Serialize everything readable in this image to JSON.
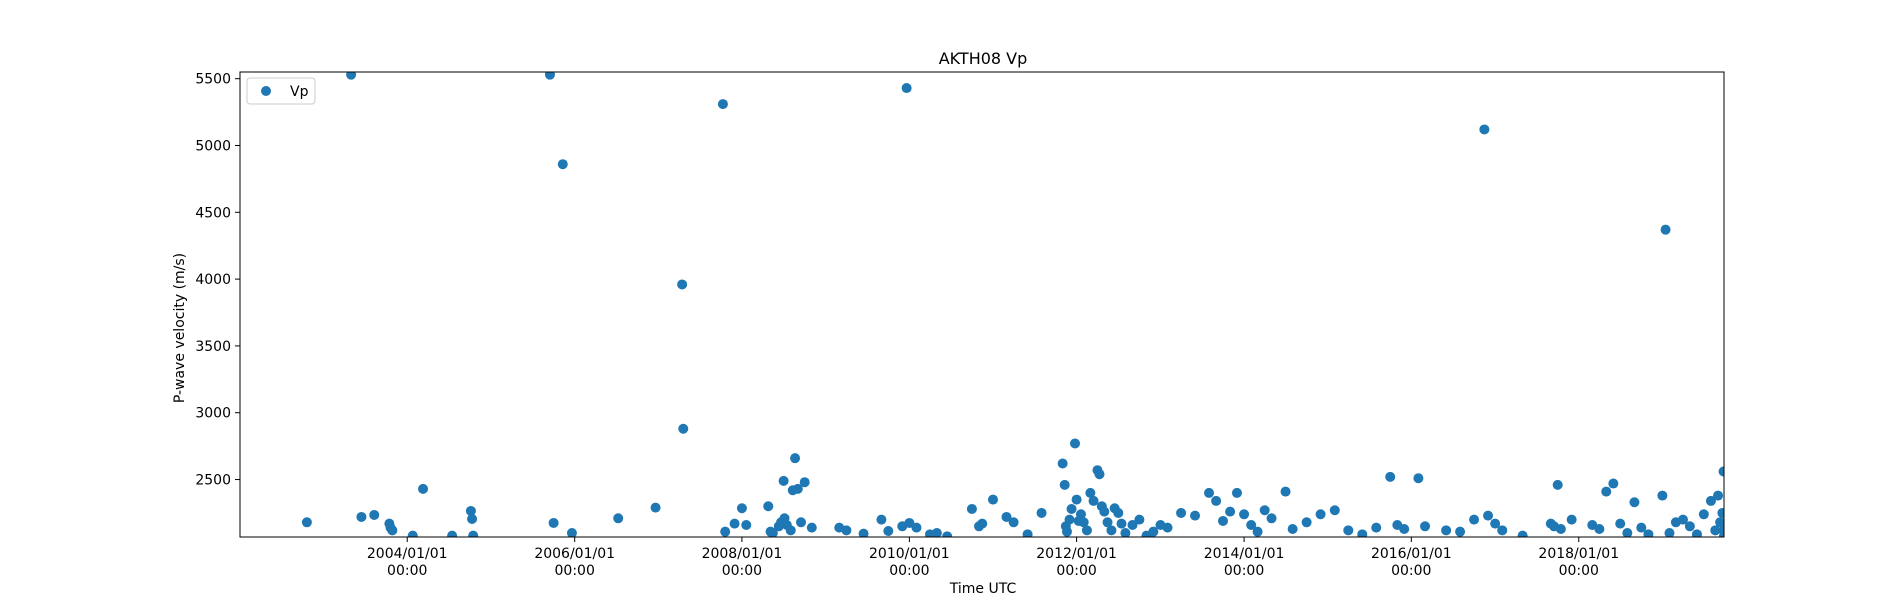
{
  "chart_data": {
    "type": "scatter",
    "title": "AKTH08 Vp",
    "xlabel": "Time UTC",
    "ylabel": "P-wave velocity (m/s)",
    "x_ticks": [
      {
        "date": "2004-01-01",
        "line1": "2004/01/01",
        "line2": "00:00"
      },
      {
        "date": "2006-01-01",
        "line1": "2006/01/01",
        "line2": "00:00"
      },
      {
        "date": "2008-01-01",
        "line1": "2008/01/01",
        "line2": "00:00"
      },
      {
        "date": "2010-01-01",
        "line1": "2010/01/01",
        "line2": "00:00"
      },
      {
        "date": "2012-01-01",
        "line1": "2012/01/01",
        "line2": "00:00"
      },
      {
        "date": "2014-01-01",
        "line1": "2014/01/01",
        "line2": "00:00"
      },
      {
        "date": "2016-01-01",
        "line1": "2016/01/01",
        "line2": "00:00"
      },
      {
        "date": "2018-01-01",
        "line1": "2018/01/01",
        "line2": "00:00"
      }
    ],
    "y_ticks": [
      2500,
      3000,
      3500,
      4000,
      4500,
      5000,
      5500
    ],
    "xlim": [
      "2002-01-01",
      "2019-09-27"
    ],
    "ylim": [
      2070,
      5550
    ],
    "grid": false,
    "legend": {
      "position": "upper-left",
      "entries": [
        "Vp"
      ]
    },
    "marker_color": "#1f77b4",
    "series": [
      {
        "name": "Vp",
        "points": [
          [
            "2002-10-20",
            2180
          ],
          [
            "2003-05-01",
            5530
          ],
          [
            "2003-06-15",
            2220
          ],
          [
            "2003-08-10",
            2235
          ],
          [
            "2003-10-15",
            2170
          ],
          [
            "2003-10-20",
            2140
          ],
          [
            "2003-10-28",
            2120
          ],
          [
            "2004-01-25",
            2080
          ],
          [
            "2004-03-10",
            2430
          ],
          [
            "2004-07-15",
            2080
          ],
          [
            "2004-10-05",
            2265
          ],
          [
            "2004-10-10",
            2205
          ],
          [
            "2004-10-15",
            2080
          ],
          [
            "2005-09-15",
            5530
          ],
          [
            "2005-10-01",
            2175
          ],
          [
            "2005-11-10",
            4860
          ],
          [
            "2005-12-20",
            2100
          ],
          [
            "2006-07-10",
            2210
          ],
          [
            "2006-12-20",
            2290
          ],
          [
            "2007-04-15",
            3960
          ],
          [
            "2007-04-20",
            2880
          ],
          [
            "2007-10-10",
            5310
          ],
          [
            "2007-10-20",
            2110
          ],
          [
            "2008-01-20",
            2160
          ],
          [
            "2007-11-30",
            2170
          ],
          [
            "2008-01-01",
            2285
          ],
          [
            "2008-04-25",
            2300
          ],
          [
            "2008-05-05",
            2110
          ],
          [
            "2008-05-15",
            2100
          ],
          [
            "2008-06-10",
            2150
          ],
          [
            "2008-06-20",
            2180
          ],
          [
            "2008-07-05",
            2210
          ],
          [
            "2008-07-15",
            2160
          ],
          [
            "2008-08-01",
            2120
          ],
          [
            "2008-08-20",
            2660
          ],
          [
            "2008-09-01",
            2430
          ],
          [
            "2008-09-15",
            2180
          ],
          [
            "2008-10-01",
            2480
          ],
          [
            "2008-07-01",
            2490
          ],
          [
            "2008-08-10",
            2420
          ],
          [
            "2008-11-01",
            2140
          ],
          [
            "2009-03-01",
            2140
          ],
          [
            "2009-04-01",
            2120
          ],
          [
            "2009-06-15",
            2095
          ],
          [
            "2009-09-01",
            2200
          ],
          [
            "2009-10-01",
            2115
          ],
          [
            "2009-12-01",
            2150
          ],
          [
            "2010-01-01",
            2175
          ],
          [
            "2010-02-01",
            2140
          ],
          [
            "2009-12-20",
            5430
          ],
          [
            "2010-04-01",
            2090
          ],
          [
            "2010-05-01",
            2100
          ],
          [
            "2010-06-15",
            2075
          ],
          [
            "2010-10-01",
            2280
          ],
          [
            "2010-11-01",
            2150
          ],
          [
            "2010-11-15",
            2170
          ],
          [
            "2011-01-01",
            2350
          ],
          [
            "2011-03-01",
            2220
          ],
          [
            "2011-04-01",
            2180
          ],
          [
            "2011-06-01",
            2090
          ],
          [
            "2011-08-01",
            2250
          ],
          [
            "2011-11-01",
            2620
          ],
          [
            "2011-11-10",
            2460
          ],
          [
            "2011-11-15",
            2150
          ],
          [
            "2011-11-20",
            2110
          ],
          [
            "2011-12-01",
            2200
          ],
          [
            "2011-12-10",
            2280
          ],
          [
            "2012-01-01",
            2350
          ],
          [
            "2012-01-20",
            2240
          ],
          [
            "2012-02-01",
            2180
          ],
          [
            "2012-02-15",
            2120
          ],
          [
            "2012-03-01",
            2400
          ],
          [
            "2012-03-15",
            2340
          ],
          [
            "2012-04-01",
            2570
          ],
          [
            "2012-04-10",
            2540
          ],
          [
            "2012-04-20",
            2300
          ],
          [
            "2012-05-01",
            2260
          ],
          [
            "2012-05-15",
            2180
          ],
          [
            "2012-06-01",
            2120
          ],
          [
            "2012-06-15",
            2285
          ],
          [
            "2012-07-01",
            2250
          ],
          [
            "2012-07-15",
            2170
          ],
          [
            "2012-08-01",
            2100
          ],
          [
            "2012-09-01",
            2160
          ],
          [
            "2012-10-01",
            2200
          ],
          [
            "2012-11-01",
            2080
          ],
          [
            "2012-12-01",
            2110
          ],
          [
            "2011-12-25",
            2770
          ],
          [
            "2012-01-10",
            2190
          ],
          [
            "2013-01-01",
            2160
          ],
          [
            "2013-02-01",
            2140
          ],
          [
            "2013-04-01",
            2250
          ],
          [
            "2013-06-01",
            2230
          ],
          [
            "2013-08-01",
            2400
          ],
          [
            "2013-09-01",
            2340
          ],
          [
            "2013-10-01",
            2190
          ],
          [
            "2013-11-01",
            2260
          ],
          [
            "2013-12-01",
            2400
          ],
          [
            "2014-01-01",
            2240
          ],
          [
            "2014-02-01",
            2160
          ],
          [
            "2014-03-01",
            2110
          ],
          [
            "2014-04-01",
            2270
          ],
          [
            "2014-05-01",
            2210
          ],
          [
            "2014-07-01",
            2410
          ],
          [
            "2014-08-01",
            2130
          ],
          [
            "2014-10-01",
            2180
          ],
          [
            "2014-12-01",
            2240
          ],
          [
            "2015-02-01",
            2270
          ],
          [
            "2015-04-01",
            2120
          ],
          [
            "2015-06-01",
            2090
          ],
          [
            "2015-08-01",
            2140
          ],
          [
            "2015-10-01",
            2520
          ],
          [
            "2015-11-01",
            2160
          ],
          [
            "2015-12-01",
            2130
          ],
          [
            "2016-02-01",
            2510
          ],
          [
            "2016-03-01",
            2150
          ],
          [
            "2016-06-01",
            2120
          ],
          [
            "2016-08-01",
            2110
          ],
          [
            "2016-10-01",
            2200
          ],
          [
            "2016-11-15",
            5120
          ],
          [
            "2016-12-01",
            2230
          ],
          [
            "2017-01-01",
            2170
          ],
          [
            "2017-02-01",
            2120
          ],
          [
            "2017-05-01",
            2080
          ],
          [
            "2017-09-01",
            2170
          ],
          [
            "2017-09-15",
            2150
          ],
          [
            "2017-10-01",
            2460
          ],
          [
            "2017-10-15",
            2130
          ],
          [
            "2017-12-01",
            2200
          ],
          [
            "2018-03-01",
            2160
          ],
          [
            "2018-04-01",
            2130
          ],
          [
            "2018-05-01",
            2410
          ],
          [
            "2018-06-01",
            2470
          ],
          [
            "2018-07-01",
            2170
          ],
          [
            "2018-08-01",
            2100
          ],
          [
            "2018-09-01",
            2330
          ],
          [
            "2018-10-01",
            2140
          ],
          [
            "2018-11-01",
            2090
          ],
          [
            "2019-01-01",
            2380
          ],
          [
            "2019-02-01",
            2100
          ],
          [
            "2019-01-15",
            4370
          ],
          [
            "2019-03-01",
            2180
          ],
          [
            "2019-04-01",
            2200
          ],
          [
            "2019-05-01",
            2150
          ],
          [
            "2019-06-01",
            2090
          ],
          [
            "2019-07-01",
            2240
          ],
          [
            "2019-08-01",
            2340
          ],
          [
            "2019-08-20",
            2120
          ],
          [
            "2019-09-01",
            2380
          ],
          [
            "2019-09-10",
            2180
          ],
          [
            "2019-09-20",
            2250
          ],
          [
            "2019-09-25",
            2560
          ],
          [
            "2019-09-26",
            2120
          ],
          [
            "2019-09-27",
            2080
          ]
        ]
      }
    ]
  }
}
